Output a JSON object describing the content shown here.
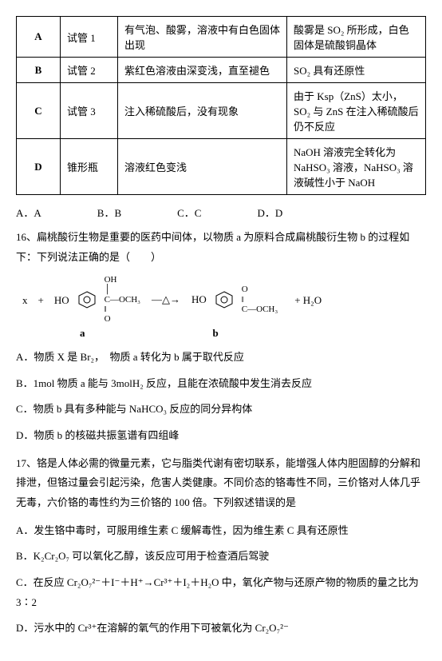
{
  "table": {
    "rows": [
      {
        "id": "A",
        "tube": "试管 1",
        "obs": "有气泡、酸雾，溶液中有白色固体出现",
        "expl": "酸雾是 SO₂ 所形成，白色固体是硫酸铜晶体"
      },
      {
        "id": "B",
        "tube": "试管 2",
        "obs": "紫红色溶液由深变浅，直至褪色",
        "expl": "SO₂ 具有还原性"
      },
      {
        "id": "C",
        "tube": "试管 3",
        "obs": "注入稀硫酸后，没有现象",
        "expl": "由于 Ksp（ZnS）太小，SO₂ 与 ZnS 在注入稀硫酸后仍不反应"
      },
      {
        "id": "D",
        "tube": "锥形瓶",
        "obs": "溶液红色变浅",
        "expl": "NaOH 溶液完全转化为 NaHSO₃ 溶液，NaHSO₃ 溶液碱性小于 NaOH"
      }
    ]
  },
  "q15opts": {
    "a": "A．A",
    "b": "B．B",
    "c": "C．C",
    "d": "D．D"
  },
  "q16": {
    "stem": "16、扁桃酸衍生物是重要的医药中间体，以物质 a 为原料合成扁桃酸衍生物 b 的过程如下：下列说法正确的是（　　）",
    "labels": {
      "a": "a",
      "b": "b"
    },
    "items": {
      "A": "A．物质 X 是 Br₂，　物质 a 转化为 b 属于取代反应",
      "B": "B．1mol 物质 a 能与 3molH₂ 反应，且能在浓硫酸中发生消去反应",
      "C": "C．物质 b 具有多种能与 NaHCO₃ 反应的同分异构体",
      "D": "D．物质 b 的核磁共振氢谱有四组峰"
    }
  },
  "q17": {
    "stem": "17、铬是人体必需的微量元素，它与脂类代谢有密切联系，能增强人体内胆固醇的分解和排泄，但铬过量会引起污染，危害人类健康。不同价态的铬毒性不同，三价铬对人体几乎无毒，六价铬的毒性约为三价铬的 100 倍。下列叙述错误的是",
    "items": {
      "A": "A．发生铬中毒时，可服用维生素 C 缓解毒性，因为维生素 C 具有还原性",
      "B": "B．K₂Cr₂O₇ 可以氧化乙醇，该反应可用于检查酒后驾驶",
      "C": "C．在反应 Cr₂O₇²⁻＋I⁻＋H⁺→Cr³⁺＋I₂＋H₂O 中，氧化产物与还原产物的物质的量之比为 3∶2",
      "D": "D．污水中的 Cr³⁺在溶解的氧气的作用下可被氧化为 Cr₂O₇²⁻"
    }
  },
  "colors": {
    "text": "#000000",
    "bg": "#ffffff",
    "border": "#000000"
  }
}
